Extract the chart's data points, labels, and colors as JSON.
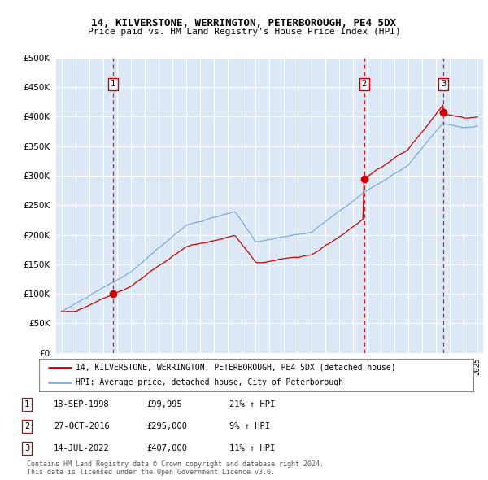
{
  "title1": "14, KILVERSTONE, WERRINGTON, PETERBOROUGH, PE4 5DX",
  "title2": "Price paid vs. HM Land Registry's House Price Index (HPI)",
  "bg_color": "#dce8f5",
  "red_line_color": "#cc0000",
  "blue_line_color": "#7aade0",
  "dashed_red_color": "#cc0000",
  "sales": [
    {
      "date_num": 1998.72,
      "price": 99995,
      "label": "1"
    },
    {
      "date_num": 2016.82,
      "price": 295000,
      "label": "2"
    },
    {
      "date_num": 2022.54,
      "price": 407000,
      "label": "3"
    }
  ],
  "legend_label_red": "14, KILVERSTONE, WERRINGTON, PETERBOROUGH, PE4 5DX (detached house)",
  "legend_label_blue": "HPI: Average price, detached house, City of Peterborough",
  "table_rows": [
    [
      "1",
      "18-SEP-1998",
      "£99,995",
      "21% ↑ HPI"
    ],
    [
      "2",
      "27-OCT-2016",
      "£295,000",
      "9% ↑ HPI"
    ],
    [
      "3",
      "14-JUL-2022",
      "£407,000",
      "11% ↑ HPI"
    ]
  ],
  "footer": "Contains HM Land Registry data © Crown copyright and database right 2024.\nThis data is licensed under the Open Government Licence v3.0.",
  "ylim": [
    0,
    500000
  ],
  "yticks": [
    0,
    50000,
    100000,
    150000,
    200000,
    250000,
    300000,
    350000,
    400000,
    450000,
    500000
  ],
  "xlim_start": 1994.6,
  "xlim_end": 2025.4
}
